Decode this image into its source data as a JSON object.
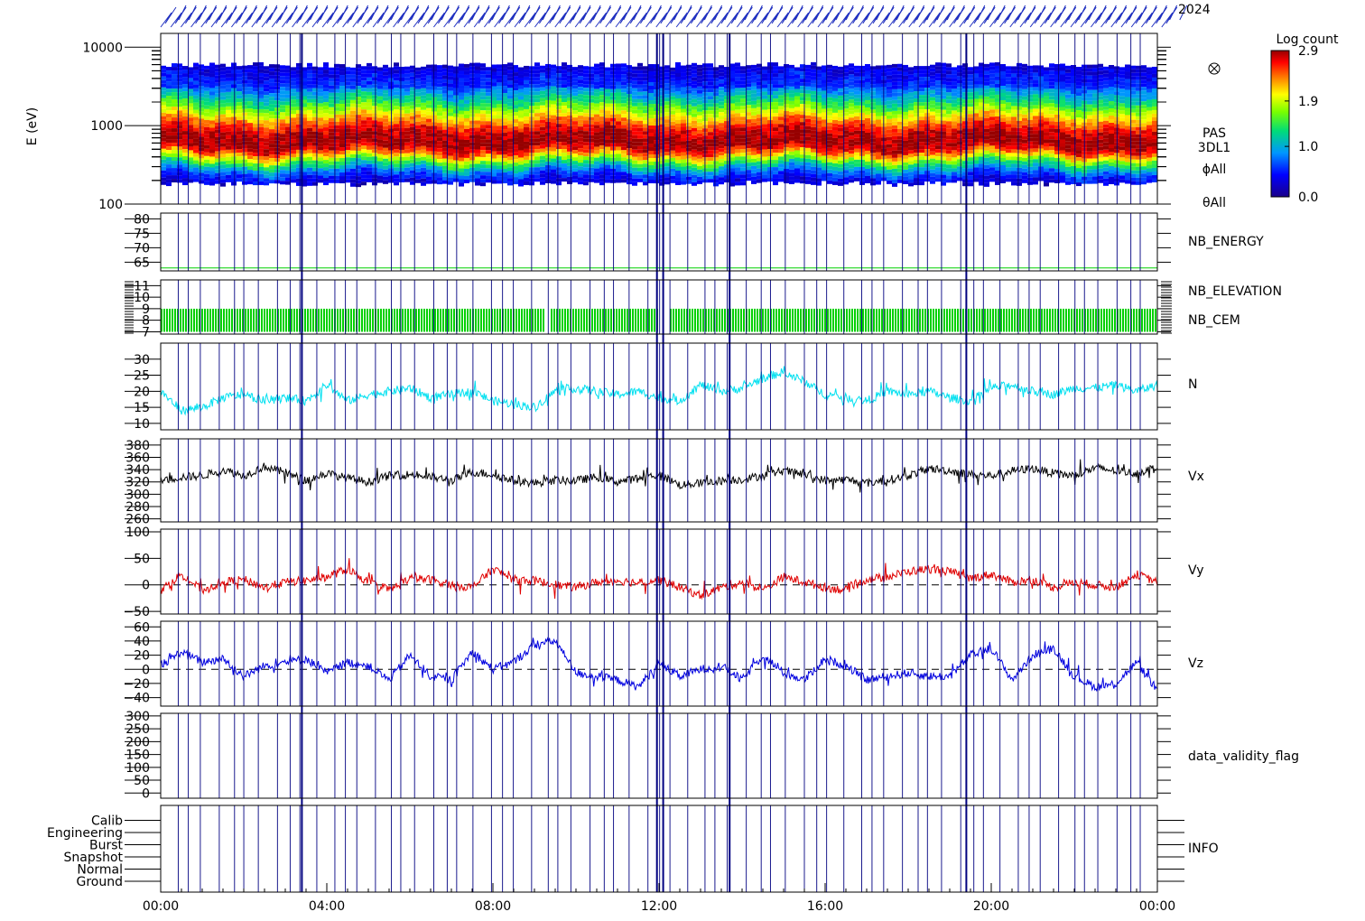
{
  "header": {
    "date_text": "2024"
  },
  "colorbar": {
    "title": "Log count",
    "ticks": [
      {
        "value": 2.9,
        "label": "2.9"
      },
      {
        "value": 1.9,
        "label": "1.9"
      },
      {
        "value": 1.0,
        "label": "1.0"
      },
      {
        "value": 0.0,
        "label": "0.0"
      }
    ],
    "range": [
      0.0,
      2.9
    ]
  },
  "time_axis": {
    "ticks": [
      "00:00",
      "04:00",
      "08:00",
      "12:00",
      "16:00",
      "20:00",
      "00:00"
    ],
    "hours": [
      0,
      4,
      8,
      12,
      16,
      20,
      24
    ]
  },
  "marker_lines": {
    "color": "#000080",
    "emphasized_hours": [
      3.4,
      12.1,
      13.7,
      19.4
    ]
  },
  "chart_data": [
    {
      "type": "heatmap",
      "panel": "spectrogram",
      "ylabel": "E (eV)",
      "yscale": "log",
      "ylim": [
        100,
        15000
      ],
      "ytick_values": [
        100,
        1000,
        10000
      ],
      "ytick_labels": [
        "100",
        "1000",
        "10000"
      ],
      "side_labels": [
        "PAS",
        "3DL1",
        "ϕAll",
        "θAll"
      ],
      "band_peak_energy_ev": 650,
      "band_low_energy_ev": 200,
      "band_high_energy_ev": 5500
    },
    {
      "type": "line",
      "panel": "nb-energy",
      "ylim": [
        62,
        82
      ],
      "ytick_values": [
        65,
        70,
        75,
        80
      ],
      "ytick_labels": [
        "65",
        "70",
        "75",
        "80"
      ],
      "series": [
        {
          "name": "NB_ENERGY",
          "color": "#00d000",
          "constant_value": 63
        }
      ]
    },
    {
      "type": "line",
      "panel": "nb-elevation",
      "ylim": [
        6.8,
        11.5
      ],
      "ytick_values": [
        7,
        8,
        9,
        10,
        11
      ],
      "ytick_labels": [
        "7",
        "8",
        "9",
        "10",
        "11"
      ],
      "series": [
        {
          "name": "NB_ELEVATION",
          "color": "#00d000",
          "range": [
            7,
            9
          ]
        }
      ],
      "extra_labels": [
        {
          "text": "NB_CEM",
          "color": "#0000a0"
        }
      ]
    },
    {
      "type": "line",
      "panel": "density",
      "ylim": [
        8,
        35
      ],
      "ytick_values": [
        10,
        15,
        20,
        25,
        30
      ],
      "ytick_labels": [
        "10",
        "15",
        "20",
        "25",
        "30"
      ],
      "series": [
        {
          "name": "N",
          "color": "#00e0f0",
          "x_hours": [
            0,
            0.5,
            1,
            1.5,
            2,
            2.5,
            3,
            3.5,
            4,
            4.5,
            5,
            5.5,
            6,
            6.5,
            7,
            7.5,
            8,
            8.5,
            9,
            9.5,
            10,
            10.5,
            11,
            11.5,
            12,
            12.5,
            13,
            13.5,
            14,
            14.5,
            15,
            15.5,
            16,
            16.5,
            17,
            17.5,
            18,
            18.5,
            19,
            19.5,
            20,
            20.5,
            21,
            21.5,
            22,
            22.5,
            23,
            23.5,
            24
          ],
          "y": [
            20,
            14,
            15,
            18,
            19,
            17,
            18,
            17,
            22,
            17,
            19,
            20,
            21,
            18,
            19,
            20,
            17,
            16,
            15,
            20,
            21,
            20,
            19,
            20,
            18,
            17,
            22,
            20,
            21,
            24,
            26,
            23,
            19,
            18,
            17,
            20,
            19,
            20,
            18,
            17,
            21,
            22,
            20,
            19,
            21,
            21,
            22,
            20,
            22
          ]
        }
      ]
    },
    {
      "type": "line",
      "panel": "vx",
      "ylim": [
        255,
        390
      ],
      "ytick_values": [
        260,
        280,
        300,
        320,
        340,
        360,
        380
      ],
      "ytick_labels": [
        "260",
        "280",
        "300",
        "320",
        "340",
        "360",
        "380"
      ],
      "series": [
        {
          "name": "Vx",
          "color": "#000000",
          "x_hours": [
            0,
            0.5,
            1,
            1.5,
            2,
            2.5,
            3,
            3.5,
            4,
            4.5,
            5,
            5.5,
            6,
            6.5,
            7,
            7.5,
            8,
            8.5,
            9,
            9.5,
            10,
            10.5,
            11,
            11.5,
            12,
            12.5,
            13,
            13.5,
            14,
            14.5,
            15,
            15.5,
            16,
            16.5,
            17,
            17.5,
            18,
            18.5,
            19,
            19.5,
            20,
            20.5,
            21,
            21.5,
            22,
            22.5,
            23,
            23.5,
            24
          ],
          "y": [
            322,
            328,
            330,
            340,
            330,
            345,
            335,
            322,
            334,
            326,
            320,
            330,
            332,
            328,
            322,
            336,
            332,
            322,
            318,
            323,
            322,
            328,
            320,
            326,
            332,
            315,
            318,
            322,
            324,
            330,
            338,
            332,
            322,
            324,
            318,
            323,
            330,
            342,
            338,
            332,
            330,
            338,
            342,
            334,
            330,
            343,
            338,
            334,
            345
          ]
        }
      ]
    },
    {
      "type": "line",
      "panel": "vy",
      "ylim": [
        -55,
        105
      ],
      "ytick_values": [
        -50,
        0,
        50,
        100
      ],
      "ytick_labels": [
        "−50",
        "0",
        "50",
        "100"
      ],
      "series": [
        {
          "name": "Vy",
          "color": "#e00000",
          "x_hours": [
            0,
            0.5,
            1,
            1.5,
            2,
            2.5,
            3,
            3.5,
            4,
            4.5,
            5,
            5.5,
            6,
            6.5,
            7,
            7.5,
            8,
            8.5,
            9,
            9.5,
            10,
            10.5,
            11,
            11.5,
            12,
            12.5,
            13,
            13.5,
            14,
            14.5,
            15,
            15.5,
            16,
            16.5,
            17,
            17.5,
            18,
            18.5,
            19,
            19.5,
            20,
            20.5,
            21,
            21.5,
            22,
            22.5,
            23,
            23.5,
            24
          ],
          "y": [
            -10,
            20,
            -10,
            5,
            10,
            -5,
            5,
            8,
            15,
            30,
            5,
            -10,
            12,
            10,
            0,
            -5,
            30,
            10,
            8,
            0,
            -5,
            5,
            8,
            4,
            10,
            -5,
            -20,
            -5,
            5,
            -10,
            15,
            5,
            -5,
            -10,
            10,
            15,
            25,
            30,
            25,
            12,
            20,
            5,
            10,
            -5,
            5,
            0,
            -5,
            20,
            5
          ]
        }
      ]
    },
    {
      "type": "line",
      "panel": "vz",
      "ylim": [
        -52,
        68
      ],
      "ytick_values": [
        -40,
        -20,
        0,
        20,
        40,
        60
      ],
      "ytick_labels": [
        "−40",
        "−20",
        "0",
        "20",
        "40",
        "60"
      ],
      "series": [
        {
          "name": "Vz",
          "color": "#0000e0",
          "x_hours": [
            0,
            0.5,
            1,
            1.5,
            2,
            2.5,
            3,
            3.5,
            4,
            4.5,
            5,
            5.5,
            6,
            6.5,
            7,
            7.5,
            8,
            8.5,
            9,
            9.5,
            10,
            10.5,
            11,
            11.5,
            12,
            12.5,
            13,
            13.5,
            14,
            14.5,
            15,
            15.5,
            16,
            16.5,
            17,
            17.5,
            18,
            18.5,
            19,
            19.5,
            20,
            20.5,
            21,
            21.5,
            22,
            22.5,
            23,
            23.5,
            24
          ],
          "y": [
            5,
            25,
            10,
            15,
            -10,
            5,
            10,
            15,
            -5,
            10,
            5,
            -15,
            20,
            -10,
            -15,
            25,
            0,
            10,
            35,
            40,
            -5,
            -10,
            -15,
            -25,
            8,
            -10,
            0,
            5,
            -15,
            20,
            -5,
            -15,
            15,
            5,
            -15,
            -10,
            -5,
            -10,
            -10,
            20,
            30,
            -15,
            20,
            30,
            -10,
            -25,
            -20,
            10,
            -30
          ]
        }
      ]
    },
    {
      "type": "line",
      "panel": "data-validity",
      "ylim": [
        -20,
        310
      ],
      "ytick_values": [
        0,
        50,
        100,
        150,
        200,
        250,
        300
      ],
      "ytick_labels": [
        "0",
        "50",
        "100",
        "150",
        "200",
        "250",
        "300"
      ],
      "series": [
        {
          "name": "data_validity_flag",
          "color": "#000000"
        }
      ]
    },
    {
      "type": "line",
      "panel": "info",
      "categories": [
        "Ground",
        "Normal",
        "Snapshot",
        "Burst",
        "Engineering",
        "Calib"
      ],
      "series": [
        {
          "name": "INFO",
          "color": "#0000a0"
        }
      ]
    }
  ]
}
